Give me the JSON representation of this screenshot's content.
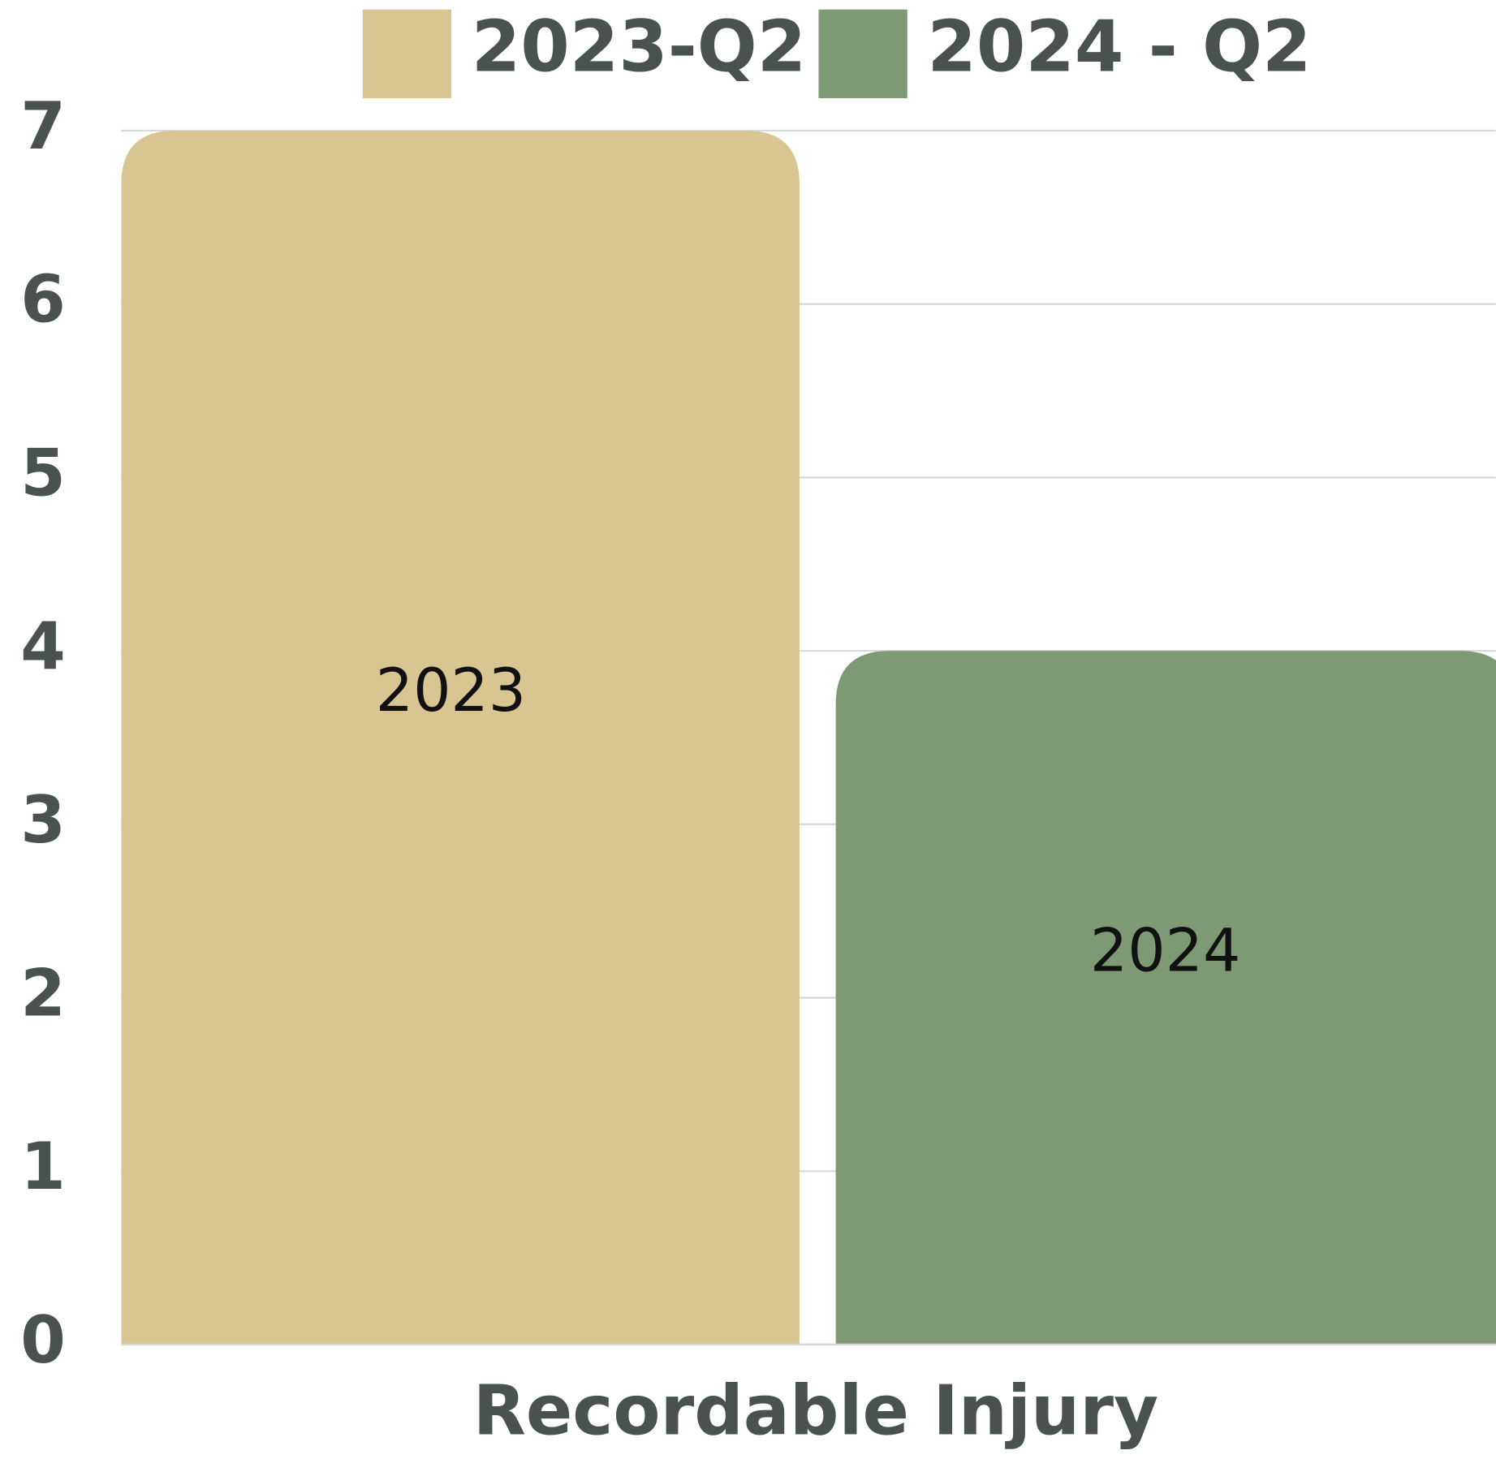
{
  "chart_data": {
    "type": "bar",
    "categories": [
      "Recordable Injury"
    ],
    "series": [
      {
        "name": "2023-Q2",
        "color": "#d8c592",
        "values": [
          7
        ],
        "label": "2023"
      },
      {
        "name": "2024 - Q2",
        "color": "#7d9a75",
        "values": [
          4
        ],
        "label": "2024"
      }
    ],
    "ylim": [
      0,
      7
    ],
    "yticks": [
      0,
      1,
      2,
      3,
      4,
      5,
      6,
      7
    ],
    "grid": true,
    "legend": "top"
  }
}
